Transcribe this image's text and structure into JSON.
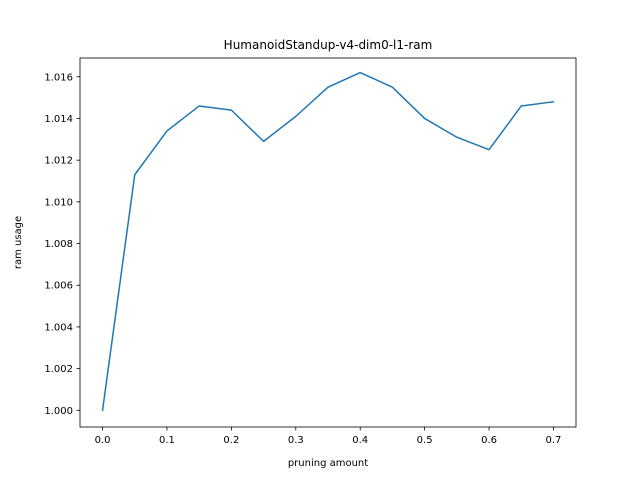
{
  "chart_data": {
    "type": "line",
    "title": "HumanoidStandup-v4-dim0-l1-ram",
    "xlabel": "pruning amount",
    "ylabel": "ram usage",
    "xlim": [
      -0.035,
      0.735
    ],
    "ylim": [
      0.9992,
      1.0169
    ],
    "grid": false,
    "x_ticks": [
      0.0,
      0.1,
      0.2,
      0.3,
      0.4,
      0.5,
      0.6,
      0.7
    ],
    "x_tick_labels": [
      "0.0",
      "0.1",
      "0.2",
      "0.3",
      "0.4",
      "0.5",
      "0.6",
      "0.7"
    ],
    "y_ticks": [
      1.0,
      1.002,
      1.004,
      1.006,
      1.008,
      1.01,
      1.012,
      1.014,
      1.016
    ],
    "y_tick_labels": [
      "1.000",
      "1.002",
      "1.004",
      "1.006",
      "1.008",
      "1.010",
      "1.012",
      "1.014",
      "1.016"
    ],
    "color": "#1f77b4",
    "x": [
      0.0,
      0.05,
      0.1,
      0.15,
      0.2,
      0.25,
      0.3,
      0.35,
      0.4,
      0.45,
      0.5,
      0.55,
      0.6,
      0.65,
      0.7
    ],
    "series": [
      {
        "values": [
          1.0,
          1.0113,
          1.0134,
          1.0146,
          1.0144,
          1.0129,
          1.0141,
          1.0155,
          1.0162,
          1.0155,
          1.014,
          1.0131,
          1.0125,
          1.0146,
          1.0148
        ]
      }
    ]
  }
}
